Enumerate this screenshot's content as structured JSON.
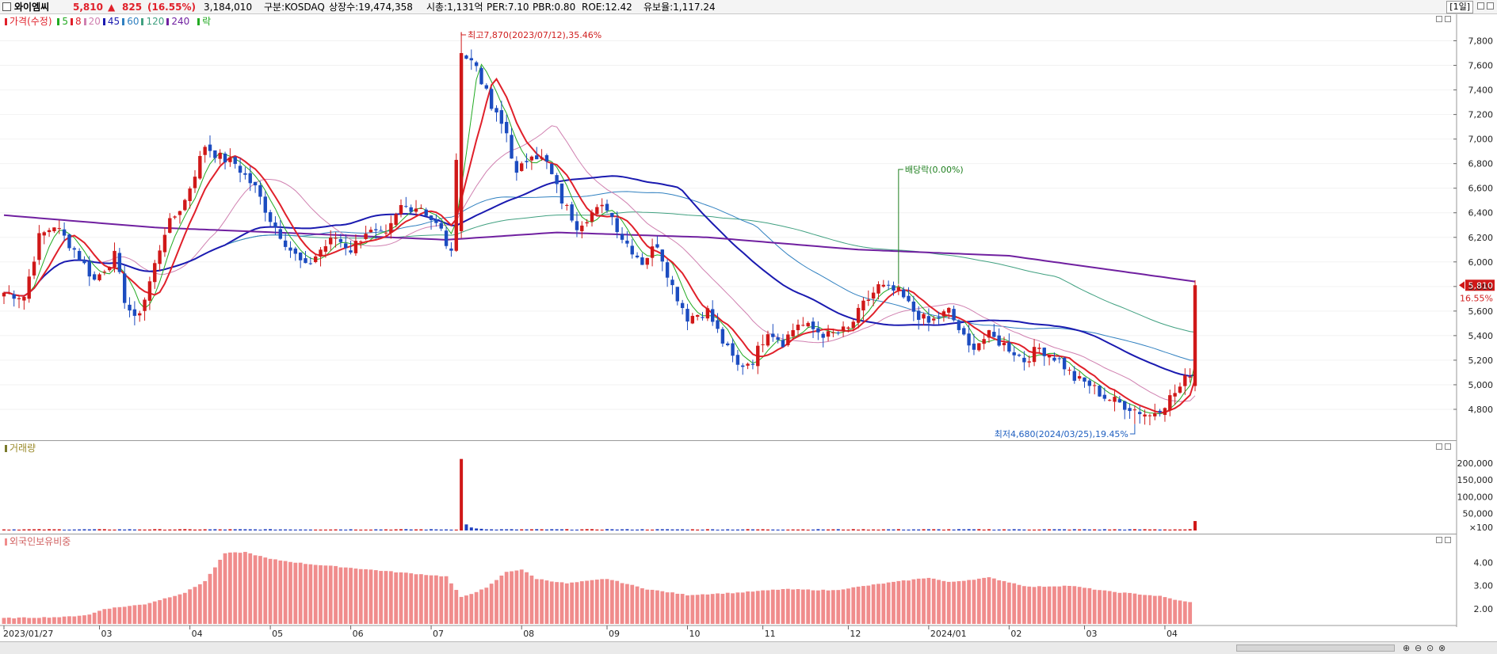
{
  "header": {
    "name": "와이엠씨",
    "price": "5,810",
    "change_symbol": "▲",
    "change": "825",
    "change_pct": "(16.55%)",
    "volume": "3,184,010",
    "market": "구분:KOSDAQ",
    "shares": "상장수:19,474,358",
    "mcap": "시총:1,131억",
    "per": "PER:7.10",
    "pbr": "PBR:0.80",
    "roe": "ROE:12.42",
    "float": "유보율:1,117.24",
    "period": "[1일]"
  },
  "legend": {
    "price_label": "가격(수정)",
    "ma": [
      {
        "label": "5",
        "color": "#22aa22"
      },
      {
        "label": "8",
        "color": "#e0202a"
      },
      {
        "label": "20",
        "color": "#d080b0"
      },
      {
        "label": "45",
        "color": "#1a1ab0"
      },
      {
        "label": "60",
        "color": "#3080c0"
      },
      {
        "label": "120",
        "color": "#40a080"
      },
      {
        "label": "240",
        "color": "#7020a0"
      }
    ],
    "ex_label": "락",
    "volume_label": "거래량",
    "foreign_label": "외국인보유비중"
  },
  "annotations": {
    "high": "최고7,870(2023/07/12),35.46%",
    "low": "최저4,680(2024/03/25),19.45%",
    "dividend": "배당락(0.00%)",
    "last_price": "5,810",
    "last_pct": "16.55%"
  },
  "chart_data": [
    {
      "type": "candlestick",
      "title": "",
      "y_ticks": [
        4800,
        5000,
        5200,
        5400,
        5600,
        5800,
        6000,
        6200,
        6400,
        6600,
        6800,
        7000,
        7200,
        7400,
        7600,
        7800
      ],
      "y_tick_labels": [
        "4,800",
        "5,000",
        "5,200",
        "5,400",
        "5,600",
        "5,800",
        "6,000",
        "6,200",
        "6,400",
        "6,600",
        "6,800",
        "7,000",
        "7,200",
        "7,400",
        "7,600",
        "7,800"
      ],
      "ylim": [
        4600,
        7900
      ],
      "x_ticks": [
        "2023/01/27",
        "03",
        "04",
        "05",
        "06",
        "07",
        "08",
        "09",
        "10",
        "11",
        "12",
        "2024/01",
        "02",
        "03",
        "04"
      ],
      "x_tick_index": [
        0,
        19,
        37,
        53,
        69,
        85,
        103,
        120,
        136,
        151,
        168,
        184,
        200,
        215,
        231
      ],
      "n_days": 238,
      "close_anchors": [
        [
          0,
          5750
        ],
        [
          4,
          5720
        ],
        [
          7,
          6200
        ],
        [
          10,
          6300
        ],
        [
          14,
          6100
        ],
        [
          18,
          5850
        ],
        [
          22,
          6050
        ],
        [
          24,
          5700
        ],
        [
          26,
          5520
        ],
        [
          28,
          5700
        ],
        [
          32,
          6250
        ],
        [
          36,
          6500
        ],
        [
          40,
          6950
        ],
        [
          43,
          6850
        ],
        [
          46,
          6800
        ],
        [
          50,
          6600
        ],
        [
          53,
          6350
        ],
        [
          57,
          6100
        ],
        [
          60,
          5950
        ],
        [
          63,
          6100
        ],
        [
          66,
          6200
        ],
        [
          69,
          6100
        ],
        [
          72,
          6250
        ],
        [
          76,
          6200
        ],
        [
          79,
          6450
        ],
        [
          83,
          6450
        ],
        [
          87,
          6250
        ],
        [
          89,
          6050
        ],
        [
          91,
          7700
        ],
        [
          94,
          7600
        ],
        [
          97,
          7250
        ],
        [
          100,
          7050
        ],
        [
          102,
          6700
        ],
        [
          105,
          6900
        ],
        [
          108,
          6800
        ],
        [
          111,
          6500
        ],
        [
          114,
          6300
        ],
        [
          117,
          6400
        ],
        [
          120,
          6450
        ],
        [
          123,
          6200
        ],
        [
          127,
          6000
        ],
        [
          130,
          6150
        ],
        [
          133,
          5800
        ],
        [
          136,
          5550
        ],
        [
          140,
          5600
        ],
        [
          143,
          5350
        ],
        [
          146,
          5150
        ],
        [
          149,
          5200
        ],
        [
          152,
          5450
        ],
        [
          155,
          5350
        ],
        [
          158,
          5500
        ],
        [
          161,
          5450
        ],
        [
          164,
          5400
        ],
        [
          168,
          5450
        ],
        [
          171,
          5650
        ],
        [
          174,
          5800
        ],
        [
          178,
          5750
        ],
        [
          181,
          5600
        ],
        [
          184,
          5500
        ],
        [
          188,
          5600
        ],
        [
          192,
          5300
        ],
        [
          196,
          5400
        ],
        [
          200,
          5300
        ],
        [
          203,
          5200
        ],
        [
          206,
          5300
        ],
        [
          210,
          5200
        ],
        [
          213,
          5050
        ],
        [
          216,
          5000
        ],
        [
          219,
          4900
        ],
        [
          222,
          4850
        ],
        [
          225,
          4800
        ],
        [
          228,
          4750
        ],
        [
          231,
          4850
        ],
        [
          234,
          4980
        ],
        [
          236,
          5100
        ],
        [
          237,
          5810
        ]
      ],
      "ma240_anchors": [
        [
          0,
          6380
        ],
        [
          30,
          6280
        ],
        [
          60,
          6230
        ],
        [
          88,
          6180
        ],
        [
          110,
          6240
        ],
        [
          140,
          6200
        ],
        [
          170,
          6100
        ],
        [
          200,
          6050
        ],
        [
          237,
          5840
        ]
      ],
      "high": 7870,
      "low": 4680,
      "last": 5810
    },
    {
      "type": "bar",
      "title": "",
      "y_tick_labels": [
        "200,000",
        "150,000",
        "100,000",
        "50,000",
        "×100"
      ],
      "y_ticks": [
        200000,
        150000,
        100000,
        50000
      ],
      "ylim": [
        0,
        230000
      ],
      "spikes": [
        [
          91,
          212000
        ],
        [
          92,
          18000
        ],
        [
          93,
          9000
        ],
        [
          94,
          6000
        ],
        [
          95,
          5000
        ],
        [
          120,
          4000
        ],
        [
          237,
          28000
        ]
      ],
      "base_volume": 2500
    },
    {
      "type": "bar",
      "title": "",
      "y_tick_labels": [
        "4.00",
        "3.00",
        "2.00"
      ],
      "y_ticks": [
        4.0,
        3.0,
        2.0
      ],
      "ylim": [
        1.35,
        4.7
      ],
      "anchors": [
        [
          0,
          1.6
        ],
        [
          12,
          1.65
        ],
        [
          17,
          1.75
        ],
        [
          20,
          2.0
        ],
        [
          28,
          2.2
        ],
        [
          36,
          2.7
        ],
        [
          40,
          3.2
        ],
        [
          44,
          4.4
        ],
        [
          48,
          4.45
        ],
        [
          53,
          4.15
        ],
        [
          60,
          3.95
        ],
        [
          70,
          3.75
        ],
        [
          80,
          3.55
        ],
        [
          88,
          3.4
        ],
        [
          91,
          2.5
        ],
        [
          96,
          2.9
        ],
        [
          100,
          3.6
        ],
        [
          103,
          3.7
        ],
        [
          106,
          3.3
        ],
        [
          112,
          3.1
        ],
        [
          120,
          3.3
        ],
        [
          128,
          2.85
        ],
        [
          136,
          2.6
        ],
        [
          146,
          2.7
        ],
        [
          155,
          2.85
        ],
        [
          165,
          2.8
        ],
        [
          175,
          3.1
        ],
        [
          184,
          3.35
        ],
        [
          188,
          3.15
        ],
        [
          196,
          3.35
        ],
        [
          204,
          2.95
        ],
        [
          212,
          3.0
        ],
        [
          220,
          2.75
        ],
        [
          230,
          2.55
        ],
        [
          234,
          2.35
        ],
        [
          237,
          2.25
        ]
      ],
      "color": "#f08c8c"
    }
  ]
}
